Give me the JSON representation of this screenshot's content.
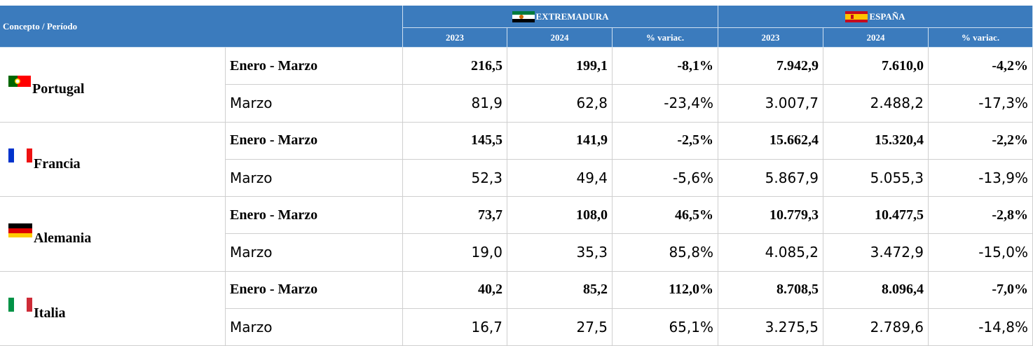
{
  "header": {
    "concept": "Concepto / Período",
    "groups": [
      "EXTREMADURA",
      "ESPAÑA"
    ],
    "columns": [
      "2023",
      "2024",
      "% variac."
    ]
  },
  "rows": [
    {
      "country": "Portugal",
      "periods": [
        {
          "label": "Enero - Marzo",
          "values": [
            "216,5",
            "199,1",
            "-8,1%",
            "7.942,9",
            "7.610,0",
            "-4,2%"
          ]
        },
        {
          "label": "Marzo",
          "values": [
            "81,9",
            "62,8",
            "-23,4%",
            "3.007,7",
            "2.488,2",
            "-17,3%"
          ]
        }
      ]
    },
    {
      "country": "Francia",
      "periods": [
        {
          "label": "Enero - Marzo",
          "values": [
            "145,5",
            "141,9",
            "-2,5%",
            "15.662,4",
            "15.320,4",
            "-2,2%"
          ]
        },
        {
          "label": "Marzo",
          "values": [
            "52,3",
            "49,4",
            "-5,6%",
            "5.867,9",
            "5.055,3",
            "-13,9%"
          ]
        }
      ]
    },
    {
      "country": "Alemania",
      "periods": [
        {
          "label": "Enero - Marzo",
          "values": [
            "73,7",
            "108,0",
            "46,5%",
            "10.779,3",
            "10.477,5",
            "-2,8%"
          ]
        },
        {
          "label": "Marzo",
          "values": [
            "19,0",
            "35,3",
            "85,8%",
            "4.085,2",
            "3.472,9",
            "-15,0%"
          ]
        }
      ]
    },
    {
      "country": "Italia",
      "periods": [
        {
          "label": "Enero - Marzo",
          "values": [
            "40,2",
            "85,2",
            "112,0%",
            "8.708,5",
            "8.096,4",
            "-7,0%"
          ]
        },
        {
          "label": "Marzo",
          "values": [
            "16,7",
            "27,5",
            "65,1%",
            "3.275,5",
            "2.789,6",
            "-14,8%"
          ]
        }
      ]
    }
  ]
}
